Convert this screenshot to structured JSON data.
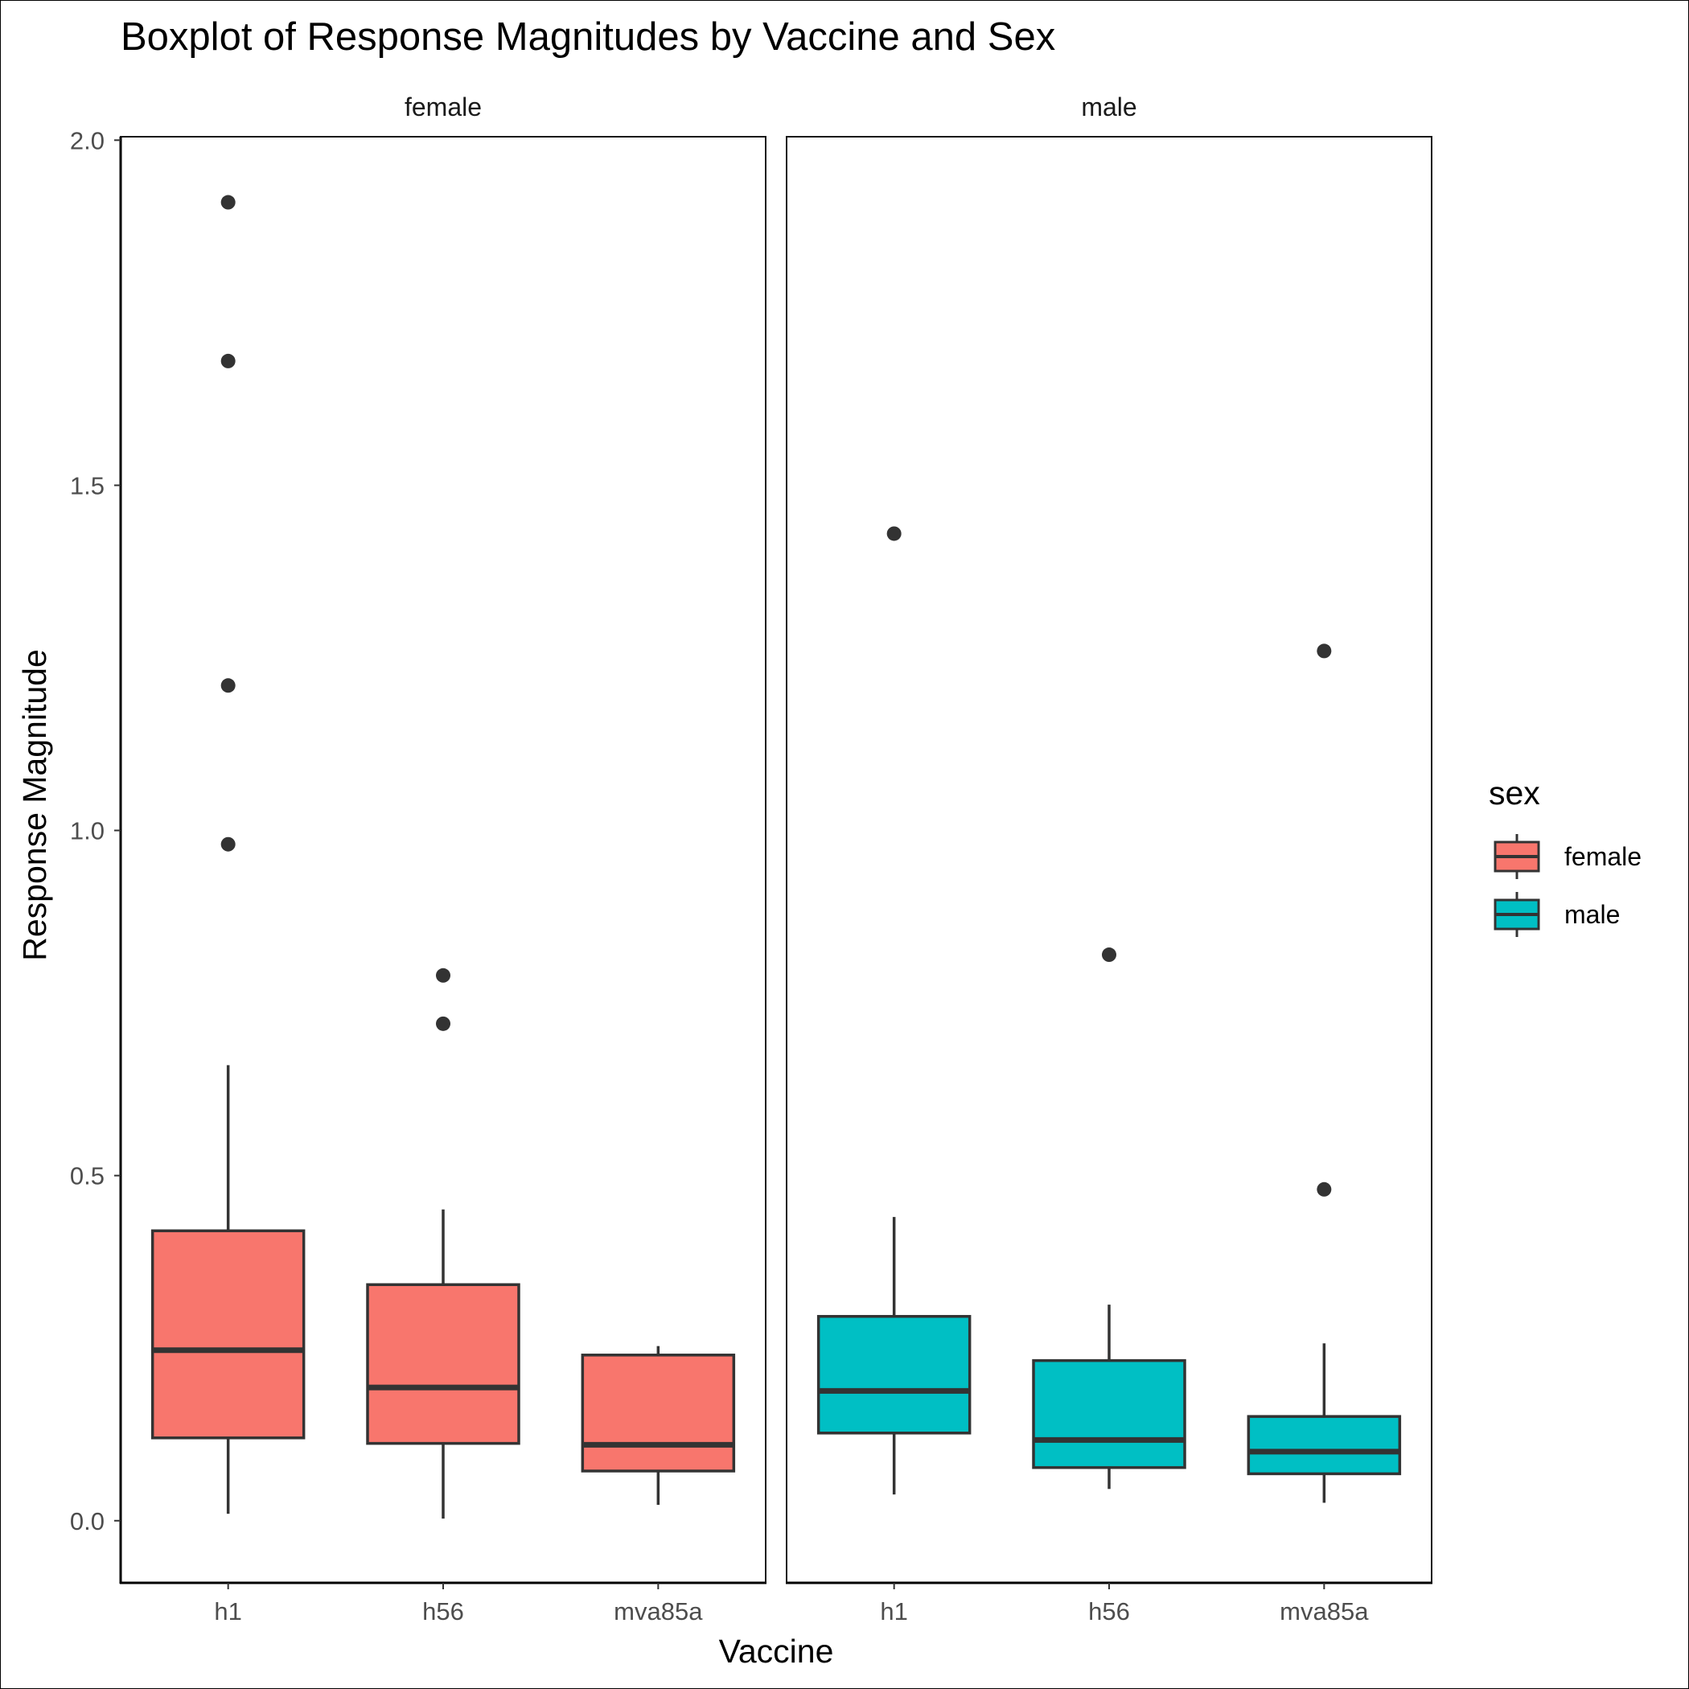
{
  "chart_data": {
    "type": "boxplot",
    "title": "Boxplot of Response Magnitudes by Vaccine and Sex",
    "xlabel": "Vaccine",
    "ylabel": "Response Magnitude",
    "ylim": [
      -0.09,
      2.005
    ],
    "yticks": [
      "0.0",
      "0.5",
      "1.0",
      "1.5",
      "2.0"
    ],
    "ytick_values": [
      0,
      0.5,
      1.0,
      1.5,
      2.0
    ],
    "categories": [
      "h1",
      "h56",
      "mva85a"
    ],
    "grid": false,
    "legend": {
      "title": "sex",
      "placement": "right",
      "entries": [
        {
          "label": "female",
          "color": "#F8766D"
        },
        {
          "label": "male",
          "color": "#00BFC4"
        }
      ]
    },
    "facets": [
      {
        "label": "female",
        "color": "#F8766D",
        "boxes": [
          {
            "category": "h1",
            "whisker_low": 0.01,
            "q1": 0.12,
            "median": 0.247,
            "q3": 0.42,
            "whisker_high": 0.66,
            "outliers": [
              0.98,
              1.21,
              1.68,
              1.91
            ]
          },
          {
            "category": "h56",
            "whisker_low": 0.003,
            "q1": 0.112,
            "median": 0.193,
            "q3": 0.342,
            "whisker_high": 0.451,
            "outliers": [
              0.72,
              0.79
            ]
          },
          {
            "category": "mva85a",
            "whisker_low": 0.023,
            "q1": 0.072,
            "median": 0.11,
            "q3": 0.24,
            "whisker_high": 0.253,
            "outliers": []
          }
        ]
      },
      {
        "label": "male",
        "color": "#00BFC4",
        "boxes": [
          {
            "category": "h1",
            "whisker_low": 0.038,
            "q1": 0.127,
            "median": 0.188,
            "q3": 0.296,
            "whisker_high": 0.44,
            "outliers": [
              1.43
            ]
          },
          {
            "category": "h56",
            "whisker_low": 0.046,
            "q1": 0.077,
            "median": 0.117,
            "q3": 0.232,
            "whisker_high": 0.313,
            "outliers": [
              0.82
            ]
          },
          {
            "category": "mva85a",
            "whisker_low": 0.026,
            "q1": 0.068,
            "median": 0.1,
            "q3": 0.151,
            "whisker_high": 0.257,
            "outliers": [
              0.48,
              1.26
            ]
          }
        ]
      }
    ]
  }
}
